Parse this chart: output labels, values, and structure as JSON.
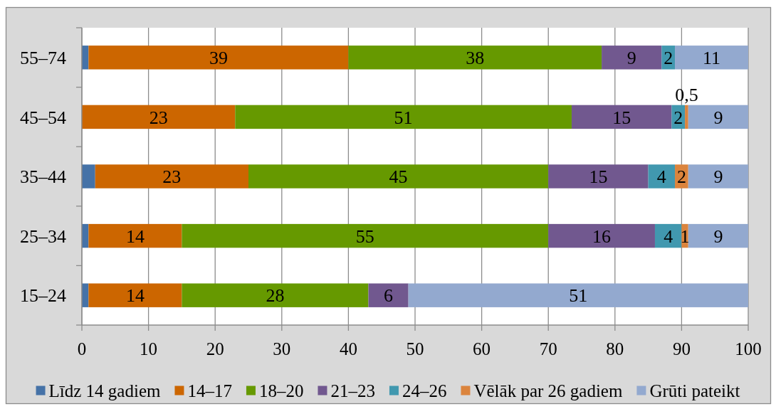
{
  "chart_data": {
    "type": "bar",
    "orientation": "horizontal",
    "stacked": true,
    "categories": [
      "55–74",
      "45–54",
      "35–44",
      "25–34",
      "15–24"
    ],
    "series": [
      {
        "name": "Līdz 14 gadiem",
        "color": "#4572a7",
        "values": [
          1,
          null,
          2,
          1,
          1
        ]
      },
      {
        "name": "14–17",
        "color": "#cc6600",
        "values": [
          39,
          23,
          23,
          14,
          14
        ],
        "value_labels": [
          "39",
          "23",
          "23",
          "14",
          "14"
        ]
      },
      {
        "name": "18–20",
        "color": "#669900",
        "values": [
          38,
          50.5,
          45,
          55,
          28
        ],
        "value_labels": [
          "38",
          "51",
          "45",
          "55",
          "28"
        ]
      },
      {
        "name": "21–23",
        "color": "#71588f",
        "values": [
          9,
          15,
          15,
          16,
          6
        ],
        "value_labels": [
          "9",
          "15",
          "15",
          "16",
          "6"
        ]
      },
      {
        "name": "24–26",
        "color": "#4198af",
        "values": [
          2,
          2,
          4,
          4,
          null
        ],
        "value_labels": [
          "2",
          "2",
          "4",
          "4",
          null
        ]
      },
      {
        "name": "Vēlāk par 26 gadiem",
        "color": "#db843d",
        "values": [
          null,
          0.5,
          2,
          1,
          null
        ],
        "value_labels": [
          null,
          "0,5",
          "2",
          "1",
          null
        ]
      },
      {
        "name": "Grūti pateikt",
        "color": "#93a9cf",
        "values": [
          11,
          9,
          9,
          9,
          51
        ],
        "value_labels": [
          "11",
          "9",
          "9",
          "9",
          "51"
        ]
      }
    ],
    "xlim": [
      0,
      100
    ],
    "xticks": [
      0,
      10,
      20,
      30,
      40,
      50,
      60,
      70,
      80,
      90,
      100
    ],
    "grid": "x",
    "legend": "bottom"
  }
}
